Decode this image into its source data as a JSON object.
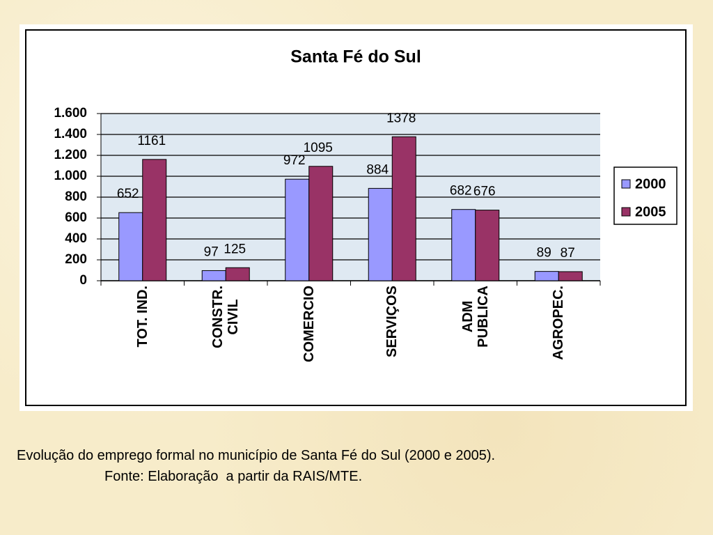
{
  "chart_data": {
    "type": "bar",
    "title": "Santa Fé do Sul",
    "categories": [
      "TOT. IND.",
      "CONSTR.\nCIVIL",
      "COMERCIO",
      "SERVIÇOS",
      "ADM\nPUBLICA",
      "AGROPEC."
    ],
    "series": [
      {
        "name": "2000",
        "color": "#9999ff",
        "values": [
          652,
          97,
          972,
          884,
          682,
          89
        ]
      },
      {
        "name": "2005",
        "color": "#993366",
        "values": [
          1161,
          125,
          1095,
          1378,
          676,
          87
        ]
      }
    ],
    "ylim": [
      0,
      1600
    ],
    "yticks": [
      0,
      200,
      400,
      600,
      800,
      {
        "value": 1000,
        "label": "1.000"
      },
      {
        "value": 1200,
        "label": "1.200"
      },
      {
        "value": 1400,
        "label": "1.400"
      },
      {
        "value": 1600,
        "label": "1.600"
      }
    ],
    "grid": true,
    "legend": "right"
  },
  "caption": {
    "line1": "Evolução do emprego formal no município de Santa Fé do Sul (2000 e 2005).",
    "line2": "Fonte: Elaboração  a partir da RAIS/MTE."
  }
}
